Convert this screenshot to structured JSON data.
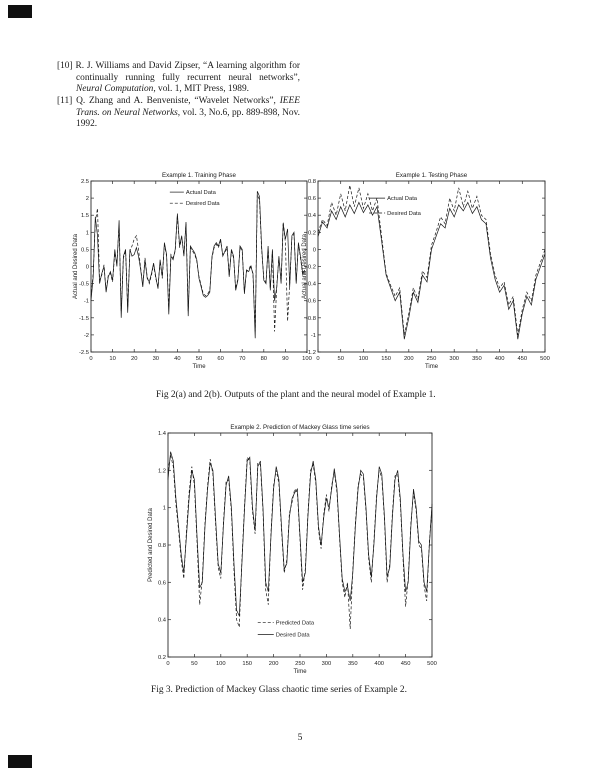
{
  "page": {
    "number": "5"
  },
  "references": [
    {
      "label": "[10]",
      "segments": [
        {
          "text": "R. J. Williams and David Zipser, “A learning algorithm for continually running fully recurrent neural networks”, ",
          "italic": false
        },
        {
          "text": "Neural Computation",
          "italic": true
        },
        {
          "text": ", vol. 1, MIT Press, 1989.",
          "italic": false
        }
      ]
    },
    {
      "label": "[11]",
      "segments": [
        {
          "text": "Q. Zhang and A. Benveniste, “Wavelet Networks”, ",
          "italic": false
        },
        {
          "text": "IEEE Trans. on Neural Networks",
          "italic": true
        },
        {
          "text": ", vol. 3, No.6, pp. 889-898, Nov. 1992.",
          "italic": false
        }
      ]
    }
  ],
  "captions": {
    "fig2": "Fig 2(a) and 2(b). Outputs of the plant and the neural model of Example 1.",
    "fig3": "Fig 3. Prediction of Mackey Glass chaotic time series of Example 2."
  },
  "chart_data": [
    {
      "id": "fig2a",
      "type": "line",
      "title": "Example 1. Training Phase",
      "xlabel": "Time",
      "ylabel": "Actual and Desired Data",
      "xlim": [
        0,
        100
      ],
      "ylim": [
        -2.5,
        2.5
      ],
      "grid": false,
      "xticks": [
        "0",
        "10",
        "20",
        "30",
        "40",
        "50",
        "60",
        "70",
        "80",
        "90",
        "100"
      ],
      "yticks": [
        "-2.5",
        "-2",
        "-1.5",
        "-1",
        "-0.5",
        "0",
        "0.5",
        "1",
        "1.5",
        "2",
        "2.5"
      ],
      "legend": [
        {
          "label": "Actual Data",
          "style": "solid"
        },
        {
          "label": "Desired Data",
          "style": "dashed"
        }
      ],
      "series": [
        {
          "name": "Actual Data",
          "style": "solid",
          "x0": 0,
          "dx": 1,
          "y": [
            -1.0,
            -0.3,
            1.45,
            0.9,
            -0.5,
            -0.2,
            0.0,
            -0.75,
            -0.3,
            -0.15,
            -0.4,
            0.5,
            0.0,
            1.35,
            -1.5,
            0.3,
            0.5,
            -1.35,
            0.5,
            0.3,
            0.35,
            0.55,
            0.3,
            -0.1,
            -0.6,
            0.2,
            -0.35,
            -0.45,
            -0.2,
            0.1,
            -0.3,
            -0.65,
            0.2,
            -0.3,
            0.7,
            0.35,
            -1.4,
            0.3,
            0.2,
            0.5,
            1.55,
            0.6,
            0.9,
            0.3,
            1.3,
            -1.45,
            0.6,
            0.5,
            0.4,
            0.2,
            -0.35,
            -0.6,
            -0.85,
            -0.9,
            -0.85,
            -0.75,
            0.3,
            0.6,
            0.7,
            0.6,
            0.8,
            0.3,
            0.45,
            0.6,
            -0.3,
            0.5,
            0.3,
            -0.7,
            -0.4,
            0.6,
            0.5,
            -0.8,
            -0.1,
            -0.15,
            0.0,
            -0.2,
            -2.1,
            2.2,
            2.05,
            0.6,
            -0.4,
            -0.5,
            0.6,
            -0.7,
            0.5,
            -1.0,
            -0.6,
            0.3,
            -0.5,
            1.25,
            0.8,
            1.1,
            -0.6,
            0.9,
            1.0,
            -0.5,
            0.7,
            0.3,
            -0.2,
            -0.1
          ]
        },
        {
          "name": "Desired Data",
          "style": "dashed",
          "x0": 0,
          "dx": 1,
          "y": [
            -0.9,
            -0.2,
            1.3,
            1.7,
            -0.4,
            -0.25,
            0.05,
            -0.7,
            -0.25,
            -0.2,
            -0.45,
            0.4,
            0.1,
            1.2,
            -1.3,
            0.25,
            0.45,
            -1.2,
            0.45,
            0.6,
            0.8,
            0.9,
            0.5,
            -0.05,
            -0.55,
            0.25,
            -0.3,
            -0.5,
            -0.25,
            0.05,
            -0.35,
            -0.6,
            0.15,
            -0.35,
            0.65,
            0.3,
            -1.2,
            0.35,
            0.25,
            0.45,
            1.5,
            0.55,
            0.85,
            0.35,
            1.25,
            -1.3,
            0.55,
            0.45,
            0.35,
            0.15,
            -0.3,
            -0.55,
            -0.8,
            -0.85,
            -0.8,
            -0.7,
            0.25,
            0.55,
            0.65,
            0.55,
            0.75,
            0.35,
            0.4,
            0.55,
            -0.25,
            0.45,
            0.25,
            -0.65,
            -0.35,
            0.55,
            0.45,
            -0.75,
            -0.15,
            -0.1,
            0.05,
            -0.25,
            -1.9,
            2.1,
            1.95,
            0.5,
            -0.35,
            -0.45,
            0.5,
            -0.65,
            0.45,
            -1.9,
            -0.55,
            0.25,
            -0.45,
            1.3,
            0.7,
            -1.6,
            -0.5,
            0.85,
            0.95,
            -0.45,
            0.65,
            0.25,
            -0.25,
            -0.15
          ]
        }
      ]
    },
    {
      "id": "fig2b",
      "type": "line",
      "title": "Example 1. Testing Phase",
      "xlabel": "Time",
      "ylabel": "Actual and Desired Data",
      "xlim": [
        0,
        500
      ],
      "ylim": [
        -1.2,
        0.8
      ],
      "grid": false,
      "xticks": [
        "0",
        "50",
        "100",
        "150",
        "200",
        "250",
        "300",
        "350",
        "400",
        "450",
        "500"
      ],
      "yticks": [
        "-1.2",
        "-1",
        "-0.8",
        "-0.6",
        "-0.4",
        "-0.2",
        "0",
        "0.2",
        "0.4",
        "0.6",
        "0.8"
      ],
      "legend": [
        {
          "label": "Actual Data",
          "style": "solid"
        },
        {
          "label": "Desired Data",
          "style": "dashed"
        }
      ],
      "series": [
        {
          "name": "Actual Data",
          "style": "solid",
          "x0": 0,
          "dx": 10,
          "y": [
            0.15,
            0.32,
            0.25,
            0.45,
            0.35,
            0.5,
            0.38,
            0.52,
            0.42,
            0.55,
            0.43,
            0.52,
            0.4,
            0.5,
            0.1,
            -0.3,
            -0.45,
            -0.6,
            -0.5,
            -1.05,
            -0.8,
            -0.5,
            -0.62,
            -0.3,
            -0.38,
            0.0,
            0.15,
            0.3,
            0.25,
            0.48,
            0.38,
            0.52,
            0.45,
            0.55,
            0.42,
            0.5,
            0.35,
            0.3,
            -0.1,
            -0.35,
            -0.5,
            -0.42,
            -0.7,
            -0.6,
            -1.05,
            -0.75,
            -0.55,
            -0.65,
            -0.35,
            -0.2,
            -0.05
          ]
        },
        {
          "name": "Desired Data",
          "style": "dashed",
          "x0": 0,
          "dx": 10,
          "y": [
            0.2,
            0.35,
            0.28,
            0.55,
            0.4,
            0.65,
            0.45,
            0.75,
            0.5,
            0.72,
            0.48,
            0.65,
            0.45,
            0.6,
            0.15,
            -0.28,
            -0.42,
            -0.55,
            -0.45,
            -1.0,
            -0.75,
            -0.45,
            -0.58,
            -0.25,
            -0.33,
            0.05,
            0.2,
            0.38,
            0.3,
            0.6,
            0.45,
            0.72,
            0.5,
            0.68,
            0.48,
            0.62,
            0.4,
            0.35,
            -0.05,
            -0.3,
            -0.45,
            -0.38,
            -0.65,
            -0.55,
            -1.0,
            -0.7,
            -0.5,
            -0.6,
            -0.3,
            -0.15,
            0.0
          ]
        }
      ]
    },
    {
      "id": "fig3",
      "type": "line",
      "title": "Example 2. Prediction of Mackey Glass time series",
      "xlabel": "Time",
      "ylabel": "Predicted and Desired Data",
      "xlim": [
        0,
        500
      ],
      "ylim": [
        0.2,
        1.4
      ],
      "grid": false,
      "xticks": [
        "0",
        "50",
        "100",
        "150",
        "200",
        "250",
        "300",
        "350",
        "400",
        "450",
        "500"
      ],
      "yticks": [
        "0.2",
        "0.4",
        "0.6",
        "0.8",
        "1",
        "1.2",
        "1.4"
      ],
      "legend": [
        {
          "label": "Predicted Data",
          "style": "dashed"
        },
        {
          "label": "Desired Data",
          "style": "solid"
        }
      ],
      "series": [
        {
          "name": "Desired Data",
          "style": "solid",
          "x0": 0,
          "dx": 5,
          "y": [
            1.15,
            1.3,
            1.25,
            1.05,
            0.9,
            0.75,
            0.65,
            0.85,
            1.05,
            1.2,
            1.15,
            0.85,
            0.57,
            0.6,
            0.9,
            1.1,
            1.24,
            1.2,
            0.95,
            0.7,
            0.65,
            0.9,
            1.12,
            1.17,
            1.0,
            0.7,
            0.45,
            0.42,
            0.7,
            1.0,
            1.25,
            1.27,
            1.0,
            0.88,
            1.22,
            1.25,
            1.0,
            0.6,
            0.55,
            0.85,
            1.1,
            1.22,
            1.15,
            0.9,
            0.67,
            0.7,
            0.95,
            1.05,
            1.08,
            1.1,
            0.85,
            0.6,
            0.65,
            0.95,
            1.18,
            1.25,
            1.15,
            0.9,
            0.8,
            0.95,
            1.05,
            1.0,
            1.1,
            1.21,
            1.1,
            0.85,
            0.62,
            0.55,
            0.58,
            0.5,
            0.65,
            0.9,
            1.1,
            1.2,
            1.18,
            1.0,
            0.75,
            0.63,
            0.8,
            1.05,
            1.22,
            1.18,
            0.95,
            0.63,
            0.68,
            0.95,
            1.15,
            1.2,
            1.05,
            0.75,
            0.55,
            0.6,
            0.9,
            1.1,
            1.0,
            0.82,
            0.8,
            0.6,
            0.55,
            0.8,
            1.02
          ]
        },
        {
          "name": "Predicted Data",
          "style": "dashed",
          "x0": 0,
          "dx": 5,
          "y": [
            1.2,
            1.28,
            1.22,
            1.02,
            0.88,
            0.72,
            0.62,
            0.88,
            1.08,
            1.22,
            1.12,
            0.82,
            0.48,
            0.62,
            0.92,
            1.12,
            1.26,
            1.18,
            0.92,
            0.68,
            0.62,
            0.92,
            1.14,
            1.15,
            0.98,
            0.66,
            0.4,
            0.36,
            0.72,
            1.02,
            1.27,
            1.25,
            0.98,
            0.86,
            1.24,
            1.23,
            0.98,
            0.56,
            0.48,
            0.87,
            1.12,
            1.2,
            1.13,
            0.88,
            0.65,
            0.72,
            0.97,
            1.03,
            1.1,
            1.08,
            0.83,
            0.56,
            0.67,
            0.97,
            1.2,
            1.23,
            1.13,
            0.88,
            0.78,
            0.97,
            1.07,
            0.98,
            1.12,
            1.19,
            1.08,
            0.83,
            0.6,
            0.52,
            0.6,
            0.35,
            0.67,
            0.92,
            1.12,
            1.18,
            1.16,
            0.98,
            0.73,
            0.6,
            0.82,
            1.07,
            1.2,
            1.16,
            0.93,
            0.6,
            0.7,
            0.97,
            1.17,
            1.18,
            1.03,
            0.73,
            0.47,
            0.62,
            0.92,
            1.08,
            0.98,
            0.8,
            0.78,
            0.58,
            0.5,
            0.82,
            1.0
          ]
        }
      ]
    }
  ]
}
